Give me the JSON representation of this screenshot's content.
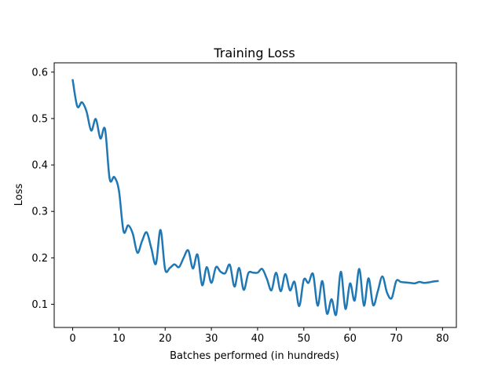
{
  "chart_data": {
    "type": "line",
    "title": "Training Loss",
    "xlabel": "Batches performed (in hundreds)",
    "ylabel": "Loss",
    "xlim": [
      -4,
      83
    ],
    "ylim": [
      0.05,
      0.62
    ],
    "xticks": [
      0,
      10,
      20,
      30,
      40,
      50,
      60,
      70,
      80
    ],
    "yticks": [
      0.1,
      0.2,
      0.3,
      0.4,
      0.5,
      0.6
    ],
    "xtick_labels": [
      "0",
      "10",
      "20",
      "30",
      "40",
      "50",
      "60",
      "70",
      "80"
    ],
    "ytick_labels": [
      "0.1",
      "0.2",
      "0.3",
      "0.4",
      "0.5",
      "0.6"
    ],
    "grid": false,
    "line_color": "#1f77b4",
    "series": [
      {
        "x": [
          0,
          1,
          2,
          3,
          4,
          5,
          6,
          7,
          8,
          9,
          10,
          11,
          12,
          13,
          14,
          15,
          16,
          17,
          18,
          19,
          20,
          21,
          22,
          23,
          24,
          25,
          26,
          27,
          28,
          29,
          30,
          31,
          32,
          33,
          34,
          35,
          36,
          37,
          38,
          39,
          40,
          41,
          42,
          43,
          44,
          45,
          46,
          47,
          48,
          49,
          50,
          51,
          52,
          53,
          54,
          55,
          56,
          57,
          58,
          59,
          60,
          61,
          62,
          63,
          64,
          65,
          66,
          67,
          68,
          69,
          70,
          71,
          72,
          73,
          74,
          75,
          76,
          77,
          78,
          79
        ],
        "y": [
          0.583,
          0.526,
          0.535,
          0.515,
          0.474,
          0.499,
          0.457,
          0.477,
          0.37,
          0.374,
          0.345,
          0.257,
          0.27,
          0.252,
          0.211,
          0.236,
          0.255,
          0.221,
          0.187,
          0.26,
          0.175,
          0.178,
          0.186,
          0.18,
          0.2,
          0.216,
          0.177,
          0.207,
          0.141,
          0.18,
          0.146,
          0.18,
          0.17,
          0.167,
          0.185,
          0.138,
          0.178,
          0.131,
          0.167,
          0.168,
          0.168,
          0.176,
          0.155,
          0.13,
          0.168,
          0.128,
          0.165,
          0.13,
          0.148,
          0.096,
          0.153,
          0.146,
          0.165,
          0.097,
          0.15,
          0.08,
          0.111,
          0.078,
          0.17,
          0.09,
          0.145,
          0.108,
          0.176,
          0.097,
          0.156,
          0.098,
          0.128,
          0.16,
          0.125,
          0.113,
          0.15,
          0.148,
          0.147,
          0.146,
          0.145,
          0.148,
          0.146,
          0.147,
          0.149,
          0.15
        ]
      }
    ]
  }
}
